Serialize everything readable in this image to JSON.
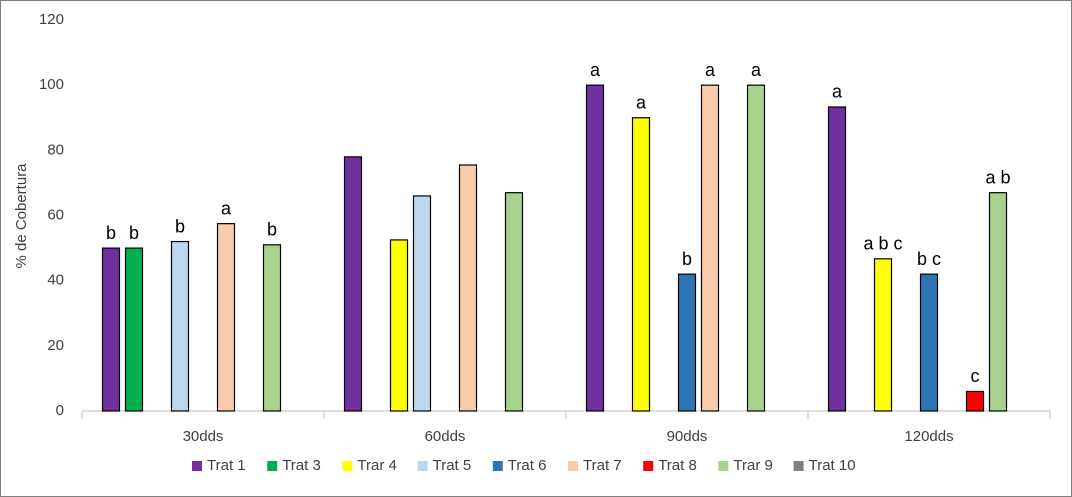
{
  "chart_data": {
    "type": "bar",
    "y_label": "% de Cobertura",
    "categories": [
      "30dds",
      "60dds",
      "90dds",
      "120dds"
    ],
    "ylim": [
      0,
      120
    ],
    "yticks": [
      0,
      20,
      40,
      60,
      80,
      100,
      120
    ],
    "grid": false,
    "legend": "bottom",
    "series": [
      {
        "name": "Trat 1",
        "color": "#7030a0",
        "values": [
          50,
          78,
          100,
          93.3
        ],
        "labels": [
          "b",
          null,
          "a",
          "a"
        ]
      },
      {
        "name": "Trat 3",
        "color": "#00b050",
        "values": [
          50,
          null,
          null,
          null
        ],
        "labels": [
          "b",
          null,
          null,
          null
        ]
      },
      {
        "name": "Trar 4",
        "color": "#ffff00",
        "values": [
          null,
          52.5,
          90,
          46.7
        ],
        "labels": [
          null,
          null,
          "a",
          "a b c"
        ]
      },
      {
        "name": "Trat 5",
        "color": "#bdd7ee",
        "values": [
          52,
          66,
          null,
          null
        ],
        "labels": [
          "b",
          null,
          null,
          null
        ]
      },
      {
        "name": "Trat 6",
        "color": "#2e75b6",
        "values": [
          null,
          null,
          42,
          42
        ],
        "labels": [
          null,
          null,
          "b",
          "b c"
        ]
      },
      {
        "name": "Trat 7",
        "color": "#f8cbad",
        "values": [
          57.5,
          75.5,
          100,
          null
        ],
        "labels": [
          "a",
          null,
          "a",
          null
        ]
      },
      {
        "name": "Trat 8",
        "color": "#ff0000",
        "values": [
          null,
          null,
          null,
          6
        ],
        "labels": [
          null,
          null,
          null,
          "c"
        ]
      },
      {
        "name": "Trar 9",
        "color": "#a9d18e",
        "values": [
          51,
          67,
          100,
          67
        ],
        "labels": [
          "b",
          null,
          "a",
          "a b"
        ]
      },
      {
        "name": "Trat 10",
        "color": "#7f7f7f",
        "values": [
          null,
          null,
          null,
          null
        ],
        "labels": [
          null,
          null,
          null,
          null
        ]
      }
    ]
  }
}
